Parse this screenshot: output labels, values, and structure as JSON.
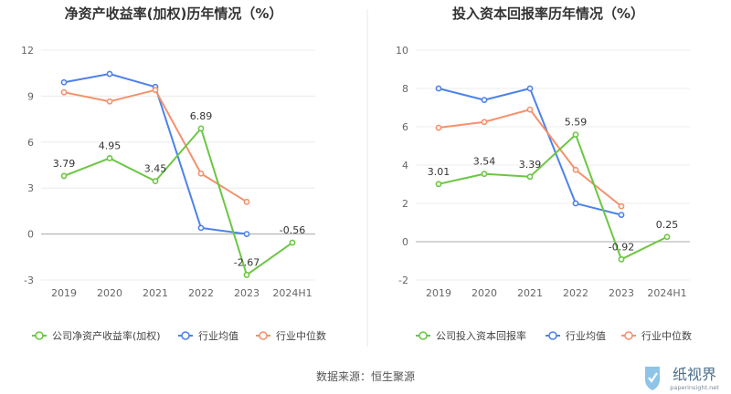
{
  "chart_data": [
    {
      "type": "line",
      "title": "净资产收益率(加权)历年情况（%）",
      "categories": [
        "2019",
        "2020",
        "2021",
        "2022",
        "2023",
        "2024H1"
      ],
      "yticks": [
        12,
        9,
        6,
        3,
        0,
        -3
      ],
      "ylim": [
        -3,
        12
      ],
      "series": [
        {
          "name": "公司净资产收益率(加权)",
          "color": "#6cc644",
          "values": [
            3.79,
            4.95,
            3.45,
            6.89,
            -2.67,
            -0.56
          ],
          "labels": [
            "3.79",
            "4.95",
            "3.45",
            "6.89",
            "-2.67",
            "-0.56"
          ]
        },
        {
          "name": "行业均值",
          "color": "#4e82e8",
          "values": [
            9.9,
            10.45,
            9.6,
            0.4,
            0.0,
            null
          ]
        },
        {
          "name": "行业中位数",
          "color": "#f4916c",
          "values": [
            9.25,
            8.65,
            9.4,
            3.95,
            2.1,
            null
          ]
        }
      ]
    },
    {
      "type": "line",
      "title": "投入资本回报率历年情况（%）",
      "categories": [
        "2019",
        "2020",
        "2021",
        "2022",
        "2023",
        "2024H1"
      ],
      "yticks": [
        10,
        8,
        6,
        4,
        2,
        0,
        -2
      ],
      "ylim": [
        -2,
        10
      ],
      "series": [
        {
          "name": "公司投入资本回报率",
          "color": "#6cc644",
          "values": [
            3.01,
            3.54,
            3.39,
            5.59,
            -0.92,
            0.25
          ],
          "labels": [
            "3.01",
            "3.54",
            "3.39",
            "5.59",
            "-0.92",
            "0.25"
          ]
        },
        {
          "name": "行业均值",
          "color": "#4e82e8",
          "values": [
            8.0,
            7.4,
            8.0,
            2.0,
            1.4,
            null
          ]
        },
        {
          "name": "行业中位数",
          "color": "#f4916c",
          "values": [
            5.95,
            6.25,
            6.9,
            3.75,
            1.85,
            null
          ]
        }
      ]
    }
  ],
  "footer": "数据来源：恒生聚源",
  "logo": {
    "text": "纸视界",
    "url": "paperinsight.net"
  }
}
